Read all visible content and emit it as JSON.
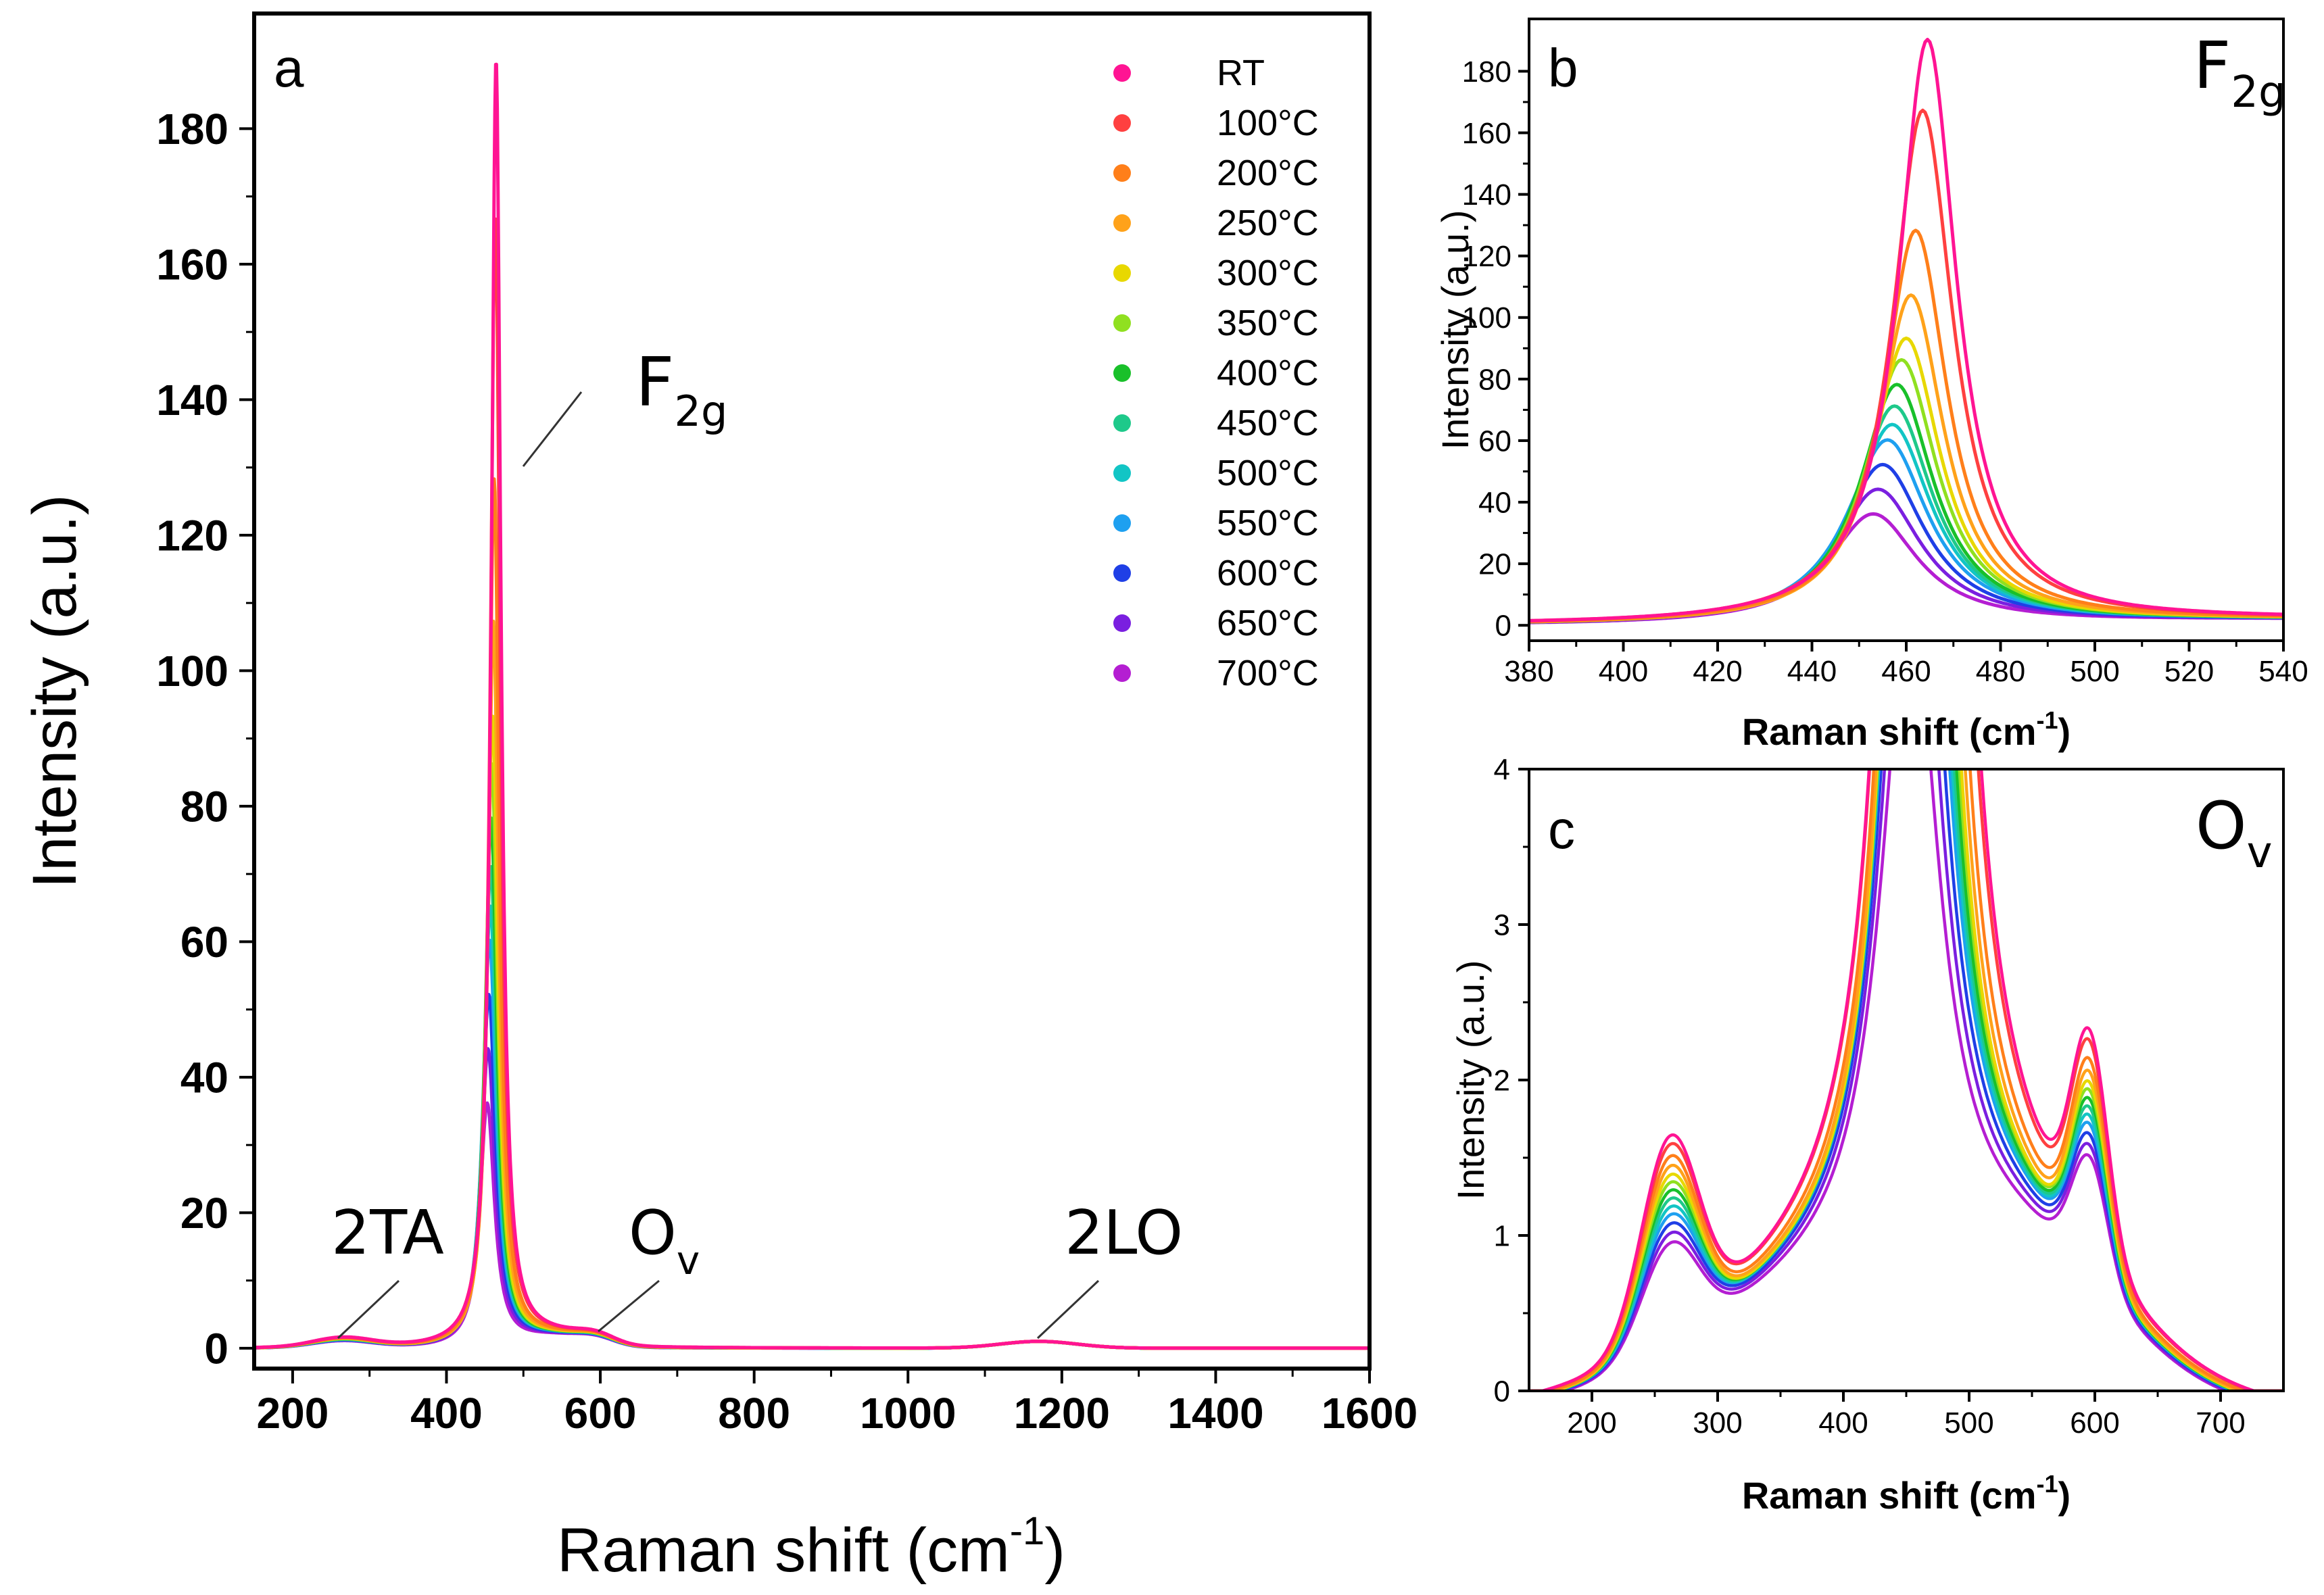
{
  "chart_data": [
    {
      "panel": "a",
      "type": "line",
      "xlabel": "Raman shift (cm",
      "xlabel_sup": "-1",
      "xlabel_end": ")",
      "ylabel": "Intensity (a.u.)",
      "xlim": [
        150,
        1600
      ],
      "ylim": [
        -3,
        197
      ],
      "xticks": [
        200,
        400,
        600,
        800,
        1000,
        1200,
        1400,
        1600
      ],
      "yticks": [
        0,
        20,
        40,
        60,
        80,
        100,
        120,
        140,
        160,
        180
      ],
      "legend_position": "top-right",
      "annotations": [
        {
          "text": "F",
          "sub": "2g",
          "x": 465,
          "y": 148
        },
        {
          "text": "2TA",
          "x": 260,
          "y": 18
        },
        {
          "text": "O",
          "sub": "v",
          "x": 600,
          "y": 18
        },
        {
          "text": "2LO",
          "x": 1170,
          "y": 18
        }
      ],
      "series": [
        {
          "name": "RT",
          "color": "#ff1493",
          "peak_x": 464.5,
          "peak_height": 190
        },
        {
          "name": "100°C",
          "color": "#ff4040",
          "peak_x": 463.5,
          "peak_height": 167
        },
        {
          "name": "200°C",
          "color": "#ff7f1a",
          "peak_x": 462,
          "peak_height": 128
        },
        {
          "name": "250°C",
          "color": "#ffa21a",
          "peak_x": 461,
          "peak_height": 107
        },
        {
          "name": "300°C",
          "color": "#e8d800",
          "peak_x": 460,
          "peak_height": 93
        },
        {
          "name": "350°C",
          "color": "#90e020",
          "peak_x": 459,
          "peak_height": 86
        },
        {
          "name": "400°C",
          "color": "#19c02a",
          "peak_x": 458,
          "peak_height": 78
        },
        {
          "name": "450°C",
          "color": "#1ec98a",
          "peak_x": 457.5,
          "peak_height": 71
        },
        {
          "name": "500°C",
          "color": "#12c5c5",
          "peak_x": 457,
          "peak_height": 65
        },
        {
          "name": "550°C",
          "color": "#1ea0f0",
          "peak_x": 456,
          "peak_height": 60
        },
        {
          "name": "600°C",
          "color": "#1f3fe6",
          "peak_x": 455,
          "peak_height": 52
        },
        {
          "name": "650°C",
          "color": "#7a1fe0",
          "peak_x": 454,
          "peak_height": 44
        },
        {
          "name": "700°C",
          "color": "#b41ed2",
          "peak_x": 453,
          "peak_height": 36
        }
      ]
    },
    {
      "panel": "b",
      "type": "line",
      "label_main": "F",
      "label_sub": "2g",
      "xlabel": "Raman shift (cm",
      "xlabel_sup": "-1",
      "xlabel_end": ")",
      "ylabel": "Intensity (a.u.)",
      "xlim": [
        380,
        540
      ],
      "ylim": [
        -5,
        197
      ],
      "xticks": [
        380,
        400,
        420,
        440,
        460,
        480,
        500,
        520,
        540
      ],
      "yticks": [
        0,
        20,
        40,
        60,
        80,
        100,
        120,
        140,
        160,
        180
      ]
    },
    {
      "panel": "c",
      "type": "line",
      "label_main": "O",
      "label_sub": "v",
      "xlabel": "Raman shift (cm",
      "xlabel_sup": "-1",
      "xlabel_end": ")",
      "ylabel": "Intensity (a.u.)",
      "xlim": [
        150,
        750
      ],
      "ylim": [
        0,
        4
      ],
      "xticks": [
        200,
        300,
        400,
        500,
        600,
        700
      ],
      "yticks": [
        0,
        1,
        2,
        3,
        4
      ]
    }
  ]
}
